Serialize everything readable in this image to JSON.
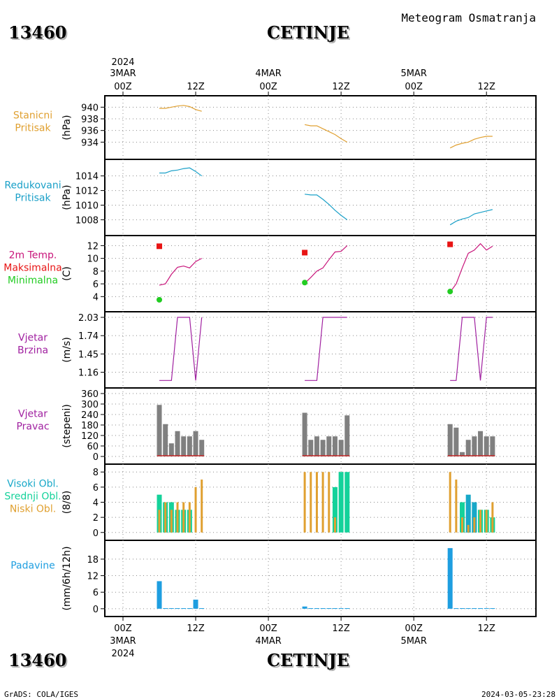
{
  "header": {
    "station_id": "13460",
    "station_name": "CETINJE",
    "product": "Meteogram Osmatranja"
  },
  "footer": {
    "station_id": "13460",
    "station_name": "CETINJE",
    "credit": "GrADS: COLA/IGES",
    "timestamp": "2024-03-05-23:28"
  },
  "time_axis": {
    "top": [
      {
        "l1": "2024",
        "l2": "3MAR",
        "l3": "00Z"
      },
      {
        "l1": "",
        "l2": "",
        "l3": "12Z"
      },
      {
        "l1": "",
        "l2": "4MAR",
        "l3": "00Z"
      },
      {
        "l1": "",
        "l2": "",
        "l3": "12Z"
      },
      {
        "l1": "",
        "l2": "5MAR",
        "l3": "00Z"
      },
      {
        "l1": "",
        "l2": "",
        "l3": "12Z"
      }
    ],
    "bottom": [
      {
        "l1": "00Z",
        "l2": "3MAR",
        "l3": "2024"
      },
      {
        "l1": "12Z",
        "l2": "",
        "l3": ""
      },
      {
        "l1": "00Z",
        "l2": "4MAR",
        "l3": ""
      },
      {
        "l1": "12Z",
        "l2": "",
        "l3": ""
      },
      {
        "l1": "00Z",
        "l2": "5MAR",
        "l3": ""
      },
      {
        "l1": "12Z",
        "l2": "",
        "l3": ""
      }
    ]
  },
  "colors": {
    "station_pressure": "#e0a030",
    "reduced_pressure": "#1aa0c8",
    "temperature": "#c8147a",
    "tmax": "#e81414",
    "tmin": "#22cc22",
    "wind_speed": "#a020a0",
    "wind_dir": "#808080",
    "wind_dir_base": "#c82828",
    "cloud_high": "#18a8c8",
    "cloud_mid": "#14d29a",
    "cloud_low": "#e0a030",
    "precip": "#1e9ee0"
  },
  "chart_data": [
    {
      "type": "line",
      "id": "station_pressure",
      "label_lines": [
        "Stanicni",
        "Pritisak"
      ],
      "ylabel": "(hPa)",
      "ylim": [
        932,
        941
      ],
      "yticks": [
        "940",
        "938",
        "936",
        "934"
      ],
      "ytick_values": [
        940,
        938,
        936,
        934
      ],
      "series": [
        {
          "x": [
            6,
            7,
            8,
            9,
            10,
            11,
            12,
            13
          ],
          "y": [
            939.8,
            939.8,
            940.0,
            940.2,
            940.3,
            940.1,
            939.6,
            939.3
          ]
        },
        {
          "x": [
            30,
            31,
            32,
            33,
            34,
            35,
            36,
            37
          ],
          "y": [
            937.0,
            936.8,
            936.8,
            936.3,
            935.8,
            935.3,
            934.6,
            934.0
          ]
        },
        {
          "x": [
            54,
            55,
            56,
            57,
            58,
            59,
            60,
            61
          ],
          "y": [
            933.0,
            933.5,
            933.8,
            934.0,
            934.5,
            934.8,
            935.0,
            935.0
          ]
        }
      ]
    },
    {
      "type": "line",
      "id": "reduced_pressure",
      "label_lines": [
        "Redukovani",
        "Pritisak"
      ],
      "ylabel": "(hPa)",
      "ylim": [
        1006.6,
        1015.5
      ],
      "yticks": [
        "1014",
        "1012",
        "1010",
        "1008"
      ],
      "ytick_values": [
        1014,
        1012,
        1010,
        1008
      ],
      "series": [
        {
          "x": [
            6,
            7,
            8,
            9,
            10,
            11,
            12,
            13
          ],
          "y": [
            1014.4,
            1014.4,
            1014.7,
            1014.8,
            1015.0,
            1015.1,
            1014.6,
            1014.0
          ]
        },
        {
          "x": [
            30,
            31,
            32,
            33,
            34,
            35,
            36,
            37
          ],
          "y": [
            1011.5,
            1011.4,
            1011.4,
            1010.8,
            1010.1,
            1009.3,
            1008.6,
            1008.0
          ]
        },
        {
          "x": [
            54,
            55,
            56,
            57,
            58,
            59,
            60,
            61
          ],
          "y": [
            1007.3,
            1007.8,
            1008.1,
            1008.3,
            1008.8,
            1009.0,
            1009.2,
            1009.4
          ]
        }
      ]
    },
    {
      "type": "line",
      "id": "temperature",
      "label_lines": [
        "2m Temp.",
        "Maksimalna",
        "Minimalna"
      ],
      "ylabel": "(C)",
      "ylim": [
        2.5,
        12.7
      ],
      "yticks": [
        "12",
        "10",
        "8",
        "6",
        "4"
      ],
      "ytick_values": [
        12,
        10,
        8,
        6,
        4
      ],
      "series": [
        {
          "x": [
            6,
            7,
            8,
            9,
            10,
            11,
            12,
            13
          ],
          "y": [
            5.8,
            6.0,
            7.5,
            8.6,
            8.8,
            8.5,
            9.5,
            10.0
          ]
        },
        {
          "x": [
            30,
            31,
            32,
            33,
            34,
            35,
            36,
            37
          ],
          "y": [
            6.1,
            7.0,
            8.0,
            8.5,
            9.8,
            11.0,
            11.1,
            12.0
          ]
        },
        {
          "x": [
            54,
            55,
            56,
            57,
            58,
            59,
            60,
            61
          ],
          "y": [
            4.7,
            6.0,
            8.5,
            10.8,
            11.3,
            12.3,
            11.3,
            11.9
          ]
        }
      ],
      "tmax": [
        {
          "x": 6,
          "y": 11.9
        },
        {
          "x": 30,
          "y": 10.9
        },
        {
          "x": 54,
          "y": 12.2
        }
      ],
      "tmin": [
        {
          "x": 6,
          "y": 3.5
        },
        {
          "x": 30,
          "y": 6.2
        },
        {
          "x": 54,
          "y": 4.8
        }
      ]
    },
    {
      "type": "line",
      "id": "wind_speed",
      "label_lines": [
        "Vjetar",
        "Brzina"
      ],
      "ylabel": "(m/s)",
      "ylim": [
        1.0,
        2.03
      ],
      "yticks": [
        "2.03",
        "1.74",
        "1.45",
        "1.16"
      ],
      "ytick_values": [
        2.03,
        1.74,
        1.45,
        1.16
      ],
      "series": [
        {
          "x": [
            6,
            7,
            8,
            9,
            10,
            11,
            12,
            13
          ],
          "y": [
            1.03,
            1.03,
            1.03,
            2.03,
            2.03,
            2.03,
            1.03,
            2.03
          ]
        },
        {
          "x": [
            30,
            31,
            32,
            33,
            34,
            35,
            36,
            37
          ],
          "y": [
            1.03,
            1.03,
            1.03,
            2.03,
            2.03,
            2.03,
            2.03,
            2.03
          ]
        },
        {
          "x": [
            54,
            55,
            56,
            57,
            58,
            59,
            60,
            61
          ],
          "y": [
            1.03,
            1.03,
            2.03,
            2.03,
            2.03,
            1.03,
            2.03,
            2.03
          ]
        }
      ]
    },
    {
      "type": "bar",
      "id": "wind_dir",
      "label_lines": [
        "Vjetar",
        "Pravac"
      ],
      "ylabel": "(stepeni)",
      "ylim": [
        -12,
        360
      ],
      "yticks": [
        "360",
        "300",
        "240",
        "180",
        "120",
        "60",
        "0"
      ],
      "ytick_values": [
        360,
        300,
        240,
        180,
        120,
        60,
        0
      ],
      "x": [
        6,
        7,
        8,
        9,
        10,
        11,
        12,
        13,
        30,
        31,
        32,
        33,
        34,
        35,
        36,
        37,
        54,
        55,
        56,
        57,
        58,
        59,
        60,
        61
      ],
      "values": [
        295,
        185,
        75,
        145,
        115,
        115,
        145,
        95,
        250,
        95,
        115,
        95,
        115,
        115,
        95,
        235,
        185,
        165,
        25,
        95,
        115,
        145,
        115,
        115
      ]
    },
    {
      "type": "bar",
      "id": "clouds",
      "label_lines": [
        "Visoki Obl.",
        "Srednji Obl.",
        "Niski Obl."
      ],
      "ylabel": "(8/8)",
      "ylim": [
        -0.3,
        8.3
      ],
      "yticks": [
        "8",
        "6",
        "4",
        "2",
        "0"
      ],
      "ytick_values": [
        8,
        6,
        4,
        2,
        0
      ],
      "x": [
        6,
        7,
        8,
        9,
        10,
        11,
        12,
        13,
        30,
        31,
        32,
        33,
        34,
        35,
        36,
        37,
        54,
        55,
        56,
        57,
        58,
        59,
        60,
        61
      ],
      "series": [
        {
          "name": "Visoki Obl.",
          "values": [
            0,
            0,
            0,
            0,
            0,
            0,
            0,
            0,
            0,
            0,
            0,
            0,
            0,
            0,
            0,
            0,
            0,
            0,
            0,
            5,
            4,
            0,
            0,
            0
          ]
        },
        {
          "name": "Srednji Obl.",
          "values": [
            5,
            4,
            4,
            3,
            3,
            3,
            0,
            0,
            0,
            0,
            0,
            0,
            0,
            6,
            8,
            8,
            0,
            0,
            4,
            4,
            3,
            3,
            3,
            2
          ]
        },
        {
          "name": "Niski Obl.",
          "values": [
            3,
            4,
            3,
            4,
            4,
            4,
            6,
            7,
            8,
            8,
            8,
            8,
            8,
            2,
            0,
            0,
            8,
            7,
            2,
            1,
            2,
            3,
            3,
            4
          ]
        }
      ]
    },
    {
      "type": "bar",
      "id": "precip",
      "label_lines": [
        "Padavine"
      ],
      "ylabel": "(mm/6h/12h)",
      "ylim": [
        -0.8,
        22.8
      ],
      "yticks": [
        "18",
        "12",
        "6",
        "0"
      ],
      "ytick_values": [
        18,
        12,
        6,
        0
      ],
      "x": [
        6,
        7,
        8,
        9,
        10,
        11,
        12,
        13,
        30,
        31,
        32,
        33,
        34,
        35,
        36,
        37,
        54,
        55,
        56,
        57,
        58,
        59,
        60,
        61
      ],
      "values": [
        10,
        0.2,
        0.2,
        0.2,
        0.2,
        0.2,
        3.3,
        0.2,
        0.8,
        0.2,
        0.2,
        0.2,
        0.2,
        0.2,
        0.2,
        0.2,
        22,
        0.2,
        0.2,
        0.2,
        0.2,
        0.2,
        0.2,
        0.2
      ]
    }
  ]
}
